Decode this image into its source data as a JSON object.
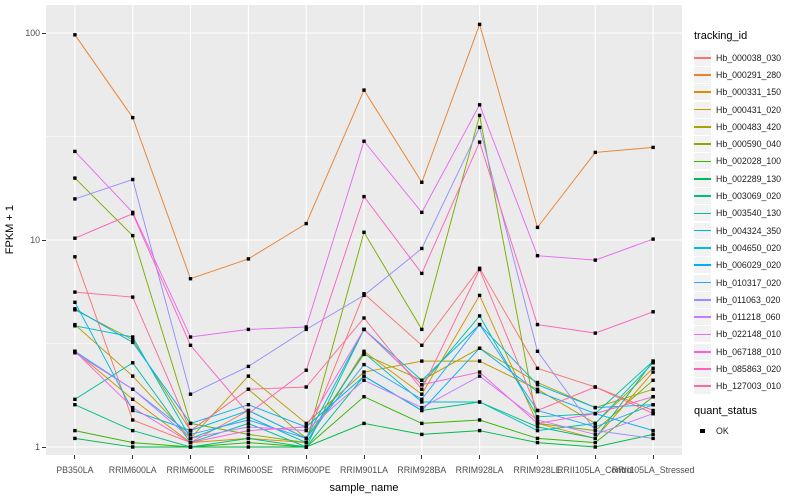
{
  "axes": {
    "y_title": "FPKM + 1",
    "x_title": "sample_name",
    "y_tick_labels": [
      "1",
      "10",
      "100"
    ]
  },
  "legend": {
    "color_title": "tracking_id",
    "shape_title": "quant_status",
    "shape_label": "OK"
  },
  "style": {
    "panel_bg": "#EBEBEB",
    "grid_color": "#FFFFFF",
    "tick_text_color": "#4D4D4D",
    "axis_title_color": "#000000",
    "tick_mark_color": "#333333",
    "legend_key_bg": "#F2F2F2",
    "point_color": "#000000"
  },
  "chart_data": {
    "type": "line",
    "title": "",
    "xlabel": "sample_name",
    "ylabel": "FPKM + 1",
    "y_scale": "log10",
    "y_ticks": [
      1,
      10,
      100
    ],
    "y_minor_ticks": [
      3.162,
      31.62
    ],
    "ylim": [
      0.91,
      137
    ],
    "grid": true,
    "legend_position": "right",
    "point_shape": "filled-square-black",
    "categories": [
      "PB350LA",
      "RRIM600LA",
      "RRIM600LE",
      "RRIM600SE",
      "RRIM600PE",
      "RRIM901LA",
      "RRIM928BA",
      "RRIM928LA",
      "RRIM928LE",
      "RRII105LA_Control",
      "RRII105LA_Stressed"
    ],
    "series": [
      {
        "name": "Hb_000038_030",
        "color": "#F8766D",
        "values": [
          8.3,
          1.35,
          1.05,
          1.5,
          1.1,
          5.5,
          3.1,
          7.3,
          2.4,
          1.95,
          1.5
        ]
      },
      {
        "name": "Hb_000291_280",
        "color": "#EA8331",
        "values": [
          98,
          39,
          6.5,
          8.1,
          12,
          53,
          19,
          110,
          11.5,
          26.5,
          28
        ]
      },
      {
        "name": "Hb_000331_150",
        "color": "#D89000",
        "values": [
          2.9,
          1.7,
          1.05,
          1.1,
          1.05,
          2.9,
          1.8,
          5.4,
          1.3,
          1.1,
          2.3
        ]
      },
      {
        "name": "Hb_000431_020",
        "color": "#C09B00",
        "values": [
          3.9,
          2.2,
          1.1,
          2.2,
          1.3,
          2.3,
          2.6,
          2.6,
          1.9,
          1.3,
          2.4
        ]
      },
      {
        "name": "Hb_000483_420",
        "color": "#A3A500",
        "values": [
          4.6,
          3.3,
          1.2,
          1.9,
          1.1,
          2.8,
          2.1,
          3.0,
          2.05,
          1.55,
          1.9
        ]
      },
      {
        "name": "Hb_000590_040",
        "color": "#7CAE00",
        "values": [
          19.9,
          10.5,
          1.3,
          1.15,
          1.05,
          10.9,
          3.7,
          40,
          1.3,
          1.2,
          2.1
        ]
      },
      {
        "name": "Hb_002028_100",
        "color": "#39B600",
        "values": [
          1.2,
          1.05,
          1.0,
          1.05,
          1.0,
          1.75,
          1.3,
          1.35,
          1.1,
          1.05,
          1.75
        ]
      },
      {
        "name": "Hb_002289_130",
        "color": "#00BB4E",
        "values": [
          1.1,
          1.0,
          1.0,
          1.0,
          1.0,
          1.3,
          1.15,
          1.2,
          1.05,
          1.0,
          1.15
        ]
      },
      {
        "name": "Hb_003069_020",
        "color": "#00BF7D",
        "values": [
          1.6,
          1.2,
          1.0,
          1.1,
          1.0,
          2.2,
          1.5,
          1.65,
          1.25,
          1.1,
          2.6
        ]
      },
      {
        "name": "Hb_003540_130",
        "color": "#00C1A3",
        "values": [
          1.7,
          2.55,
          1.05,
          1.3,
          1.0,
          3.7,
          2.0,
          4.3,
          1.4,
          1.45,
          2.6
        ]
      },
      {
        "name": "Hb_004324_350",
        "color": "#00BFC4",
        "values": [
          3.85,
          3.4,
          1.1,
          1.4,
          1.05,
          2.85,
          1.65,
          1.65,
          1.2,
          1.3,
          2.55
        ]
      },
      {
        "name": "Hb_004650_020",
        "color": "#00BAE0",
        "values": [
          5.0,
          1.5,
          1.2,
          1.5,
          1.1,
          3.7,
          2.1,
          3.9,
          2.0,
          1.55,
          1.6
        ]
      },
      {
        "name": "Hb_006029_020",
        "color": "#00B0F6",
        "values": [
          4.65,
          3.2,
          1.3,
          1.6,
          1.25,
          2.2,
          1.5,
          3.0,
          1.85,
          1.45,
          1.2
        ]
      },
      {
        "name": "Hb_010317_020",
        "color": "#35A2FF",
        "values": [
          2.9,
          1.9,
          1.15,
          1.35,
          1.1,
          2.5,
          1.7,
          3.9,
          1.5,
          1.25,
          1.6
        ]
      },
      {
        "name": "Hb_011063_020",
        "color": "#9590FF",
        "values": [
          15.8,
          19.6,
          1.8,
          2.45,
          3.7,
          5.4,
          9.1,
          35,
          2.9,
          1.2,
          1.1
        ]
      },
      {
        "name": "Hb_011218_060",
        "color": "#C77CFF",
        "values": [
          2.85,
          1.9,
          1.1,
          1.25,
          1.2,
          2.1,
          1.55,
          2.2,
          1.35,
          1.15,
          1.45
        ]
      },
      {
        "name": "Hb_022148_010",
        "color": "#E76BF3",
        "values": [
          26.8,
          13.6,
          3.4,
          3.7,
          3.8,
          30,
          13.6,
          45,
          8.4,
          8.0,
          10.1
        ]
      },
      {
        "name": "Hb_067188_010",
        "color": "#FA62DB",
        "values": [
          2.9,
          1.55,
          1.05,
          1.2,
          1.25,
          3.7,
          2.0,
          2.3,
          1.3,
          1.45,
          1.75
        ]
      },
      {
        "name": "Hb_085863_020",
        "color": "#FF62BC",
        "values": [
          10.2,
          13.4,
          3.1,
          1.45,
          2.35,
          16.2,
          6.9,
          29.7,
          3.9,
          3.55,
          4.5
        ]
      },
      {
        "name": "Hb_127003_010",
        "color": "#FF6A98",
        "values": [
          5.6,
          5.3,
          1.2,
          1.9,
          1.95,
          4.2,
          1.9,
          7.2,
          1.5,
          1.95,
          1.45
        ]
      }
    ]
  }
}
